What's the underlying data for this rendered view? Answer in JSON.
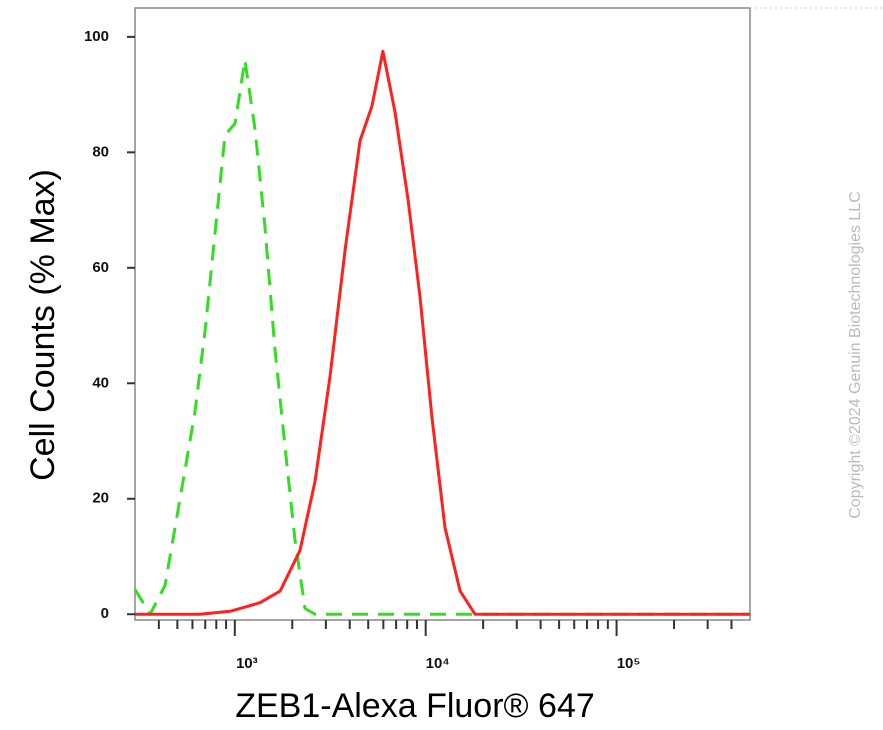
{
  "chart_data": {
    "type": "line",
    "xlabel": "ZEB1-Alexa Fluor® 647",
    "ylabel": "Cell Counts (% Max)",
    "watermark": "Copyright ©2024 Genuin Biotechnologies LLC",
    "xscale": "log",
    "xlim": [
      300,
      500000
    ],
    "xticks": [
      {
        "value": 1000,
        "label": "10³"
      },
      {
        "value": 10000,
        "label": "10⁴"
      },
      {
        "value": 100000,
        "label": "10⁵"
      }
    ],
    "xminorticks": [
      400,
      500,
      600,
      700,
      800,
      900,
      2000,
      3000,
      4000,
      5000,
      6000,
      7000,
      8000,
      9000,
      20000,
      30000,
      40000,
      50000,
      60000,
      70000,
      80000,
      90000,
      200000,
      300000,
      400000
    ],
    "ylim": [
      -1,
      105
    ],
    "yticks": [
      0,
      20,
      40,
      60,
      80,
      100
    ],
    "series": [
      {
        "color": "#33dd22",
        "dash": true,
        "x": [
          300,
          360,
          431,
          516,
          618,
          698,
          787,
          888,
          1002,
          1130,
          1276,
          1439,
          1622,
          1832,
          2065,
          2333,
          2630,
          500000
        ],
        "values": [
          4.3,
          0,
          5,
          20,
          35,
          49,
          66,
          83,
          85,
          96,
          84,
          67,
          46,
          29,
          13,
          1,
          0,
          0
        ]
      },
      {
        "color": "#ff2020",
        "dash": false,
        "x": [
          300,
          656,
          944,
          1355,
          1726,
          2193,
          2630,
          3148,
          3776,
          4529,
          5224,
          5970,
          6902,
          8072,
          9333,
          10790,
          12620,
          15140,
          18130,
          500000
        ],
        "values": [
          0,
          0,
          0.5,
          2,
          4,
          11,
          23,
          41,
          63,
          82,
          88,
          97.5,
          87,
          72,
          55,
          34,
          15,
          4,
          0,
          0
        ]
      }
    ]
  }
}
